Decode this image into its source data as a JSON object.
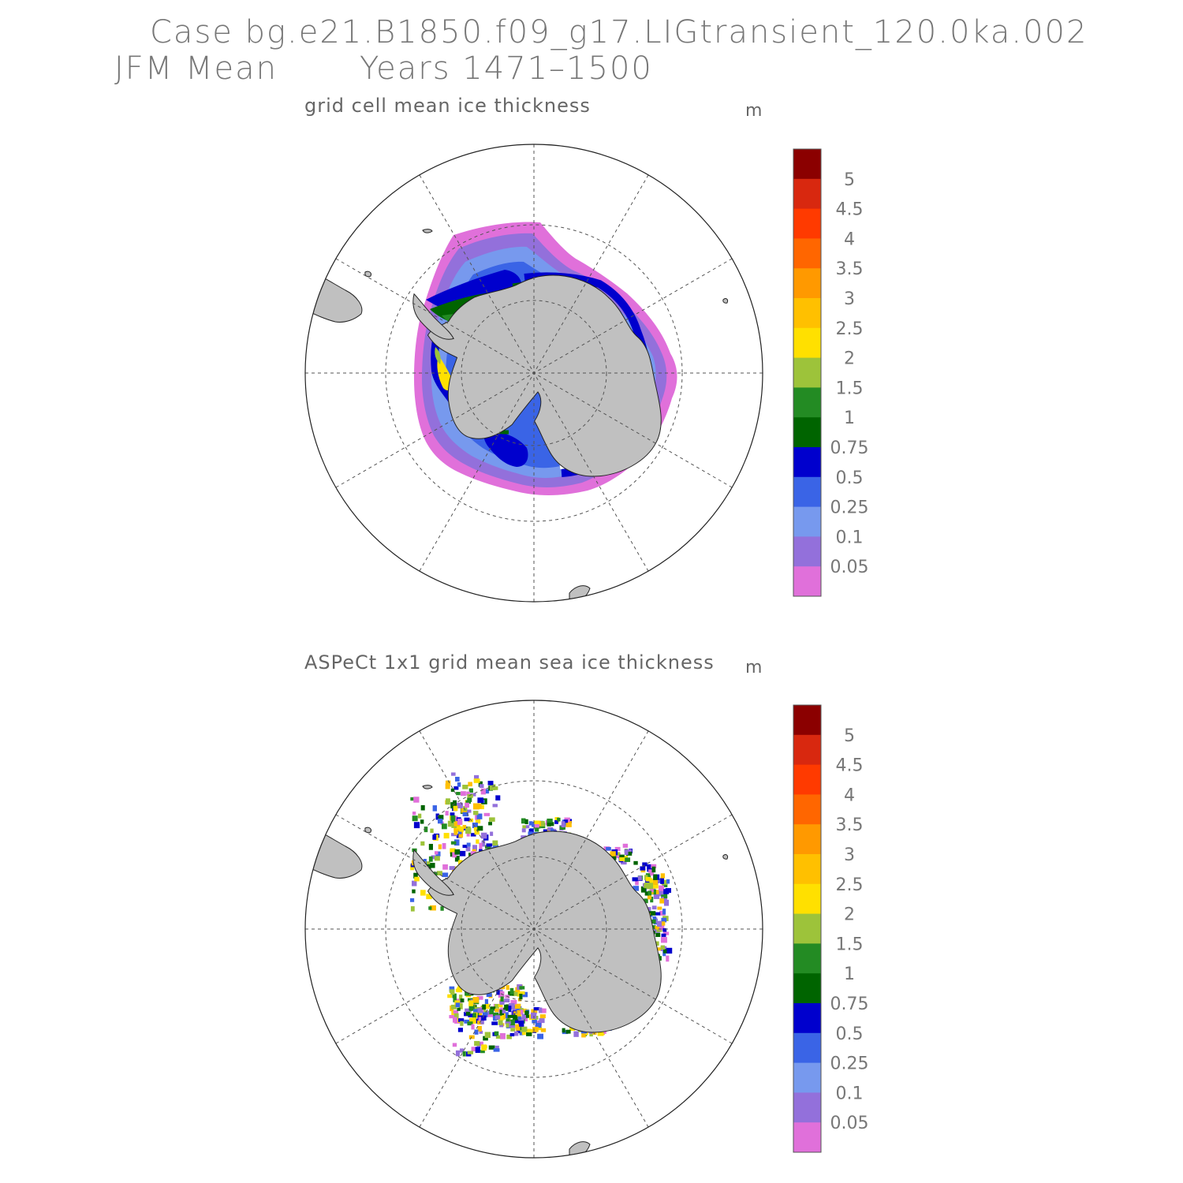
{
  "header": {
    "line1": "Case bg.e21.B1850.f09_g17.LIGtransient_120.0ka.002",
    "line2_left": "JFM Mean",
    "line2_right": "Years 1471–1500"
  },
  "panels": [
    {
      "title": "grid cell mean ice thickness",
      "unit": "m"
    },
    {
      "title": "ASPeCt 1x1 grid mean sea ice thickness",
      "unit": "m"
    }
  ],
  "colorbar": {
    "labels": [
      "5",
      "4.5",
      "4",
      "3.5",
      "3",
      "2.5",
      "2",
      "1.5",
      "1",
      "0.75",
      "0.5",
      "0.25",
      "0.1",
      "0.05"
    ],
    "colors": [
      "#8b0000",
      "#d8280f",
      "#ff3a00",
      "#ff6600",
      "#ff9900",
      "#ffc000",
      "#ffe000",
      "#9dc33a",
      "#238b23",
      "#006400",
      "#0000cd",
      "#3a64e6",
      "#7799ee",
      "#9370db",
      "#e070da"
    ]
  },
  "colors": {
    "land": "#c0c0c0",
    "coast": "#222222",
    "grid": "#555555"
  }
}
